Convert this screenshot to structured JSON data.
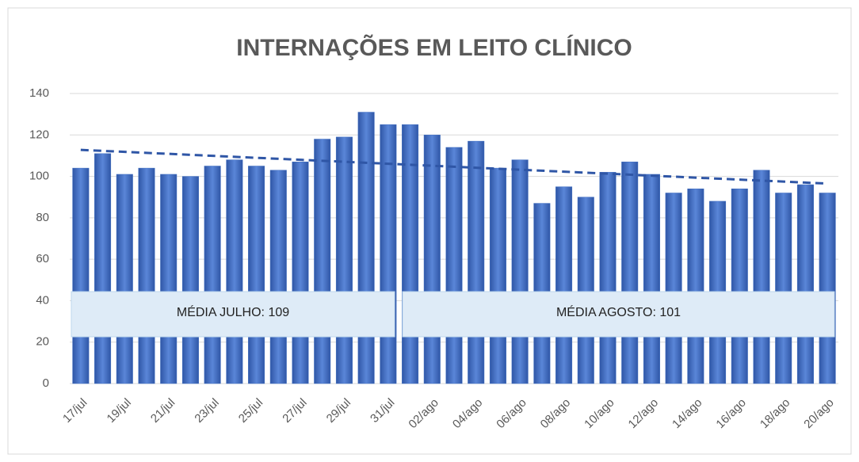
{
  "chart_data": {
    "type": "bar",
    "title": "INTERNAÇÕES EM LEITO CLÍNICO",
    "categories": [
      "17/jul",
      null,
      "19/jul",
      null,
      "21/jul",
      null,
      "23/jul",
      null,
      "25/jul",
      null,
      "27/jul",
      null,
      "29/jul",
      null,
      "31/jul",
      null,
      "02/ago",
      null,
      "04/ago",
      null,
      "06/ago",
      null,
      "08/ago",
      null,
      "10/ago",
      null,
      "12/ago",
      null,
      "14/ago",
      null,
      "16/ago",
      null,
      "18/ago",
      null,
      "20/ago"
    ],
    "values": [
      104,
      111,
      101,
      104,
      101,
      100,
      105,
      108,
      105,
      103,
      107,
      118,
      119,
      131,
      125,
      125,
      120,
      114,
      117,
      104,
      108,
      87,
      95,
      90,
      102,
      107,
      101,
      92,
      94,
      88,
      94,
      103,
      92,
      96,
      92
    ],
    "color": "#4472c4",
    "ylim": [
      0,
      140
    ],
    "yticks": [
      0,
      20,
      40,
      60,
      80,
      100,
      120,
      140
    ],
    "grid": true,
    "trendline": true,
    "annotations": [
      {
        "text": "MÉDIA JULHO: 109"
      },
      {
        "text": "MÉDIA AGOSTO: 101"
      }
    ]
  }
}
